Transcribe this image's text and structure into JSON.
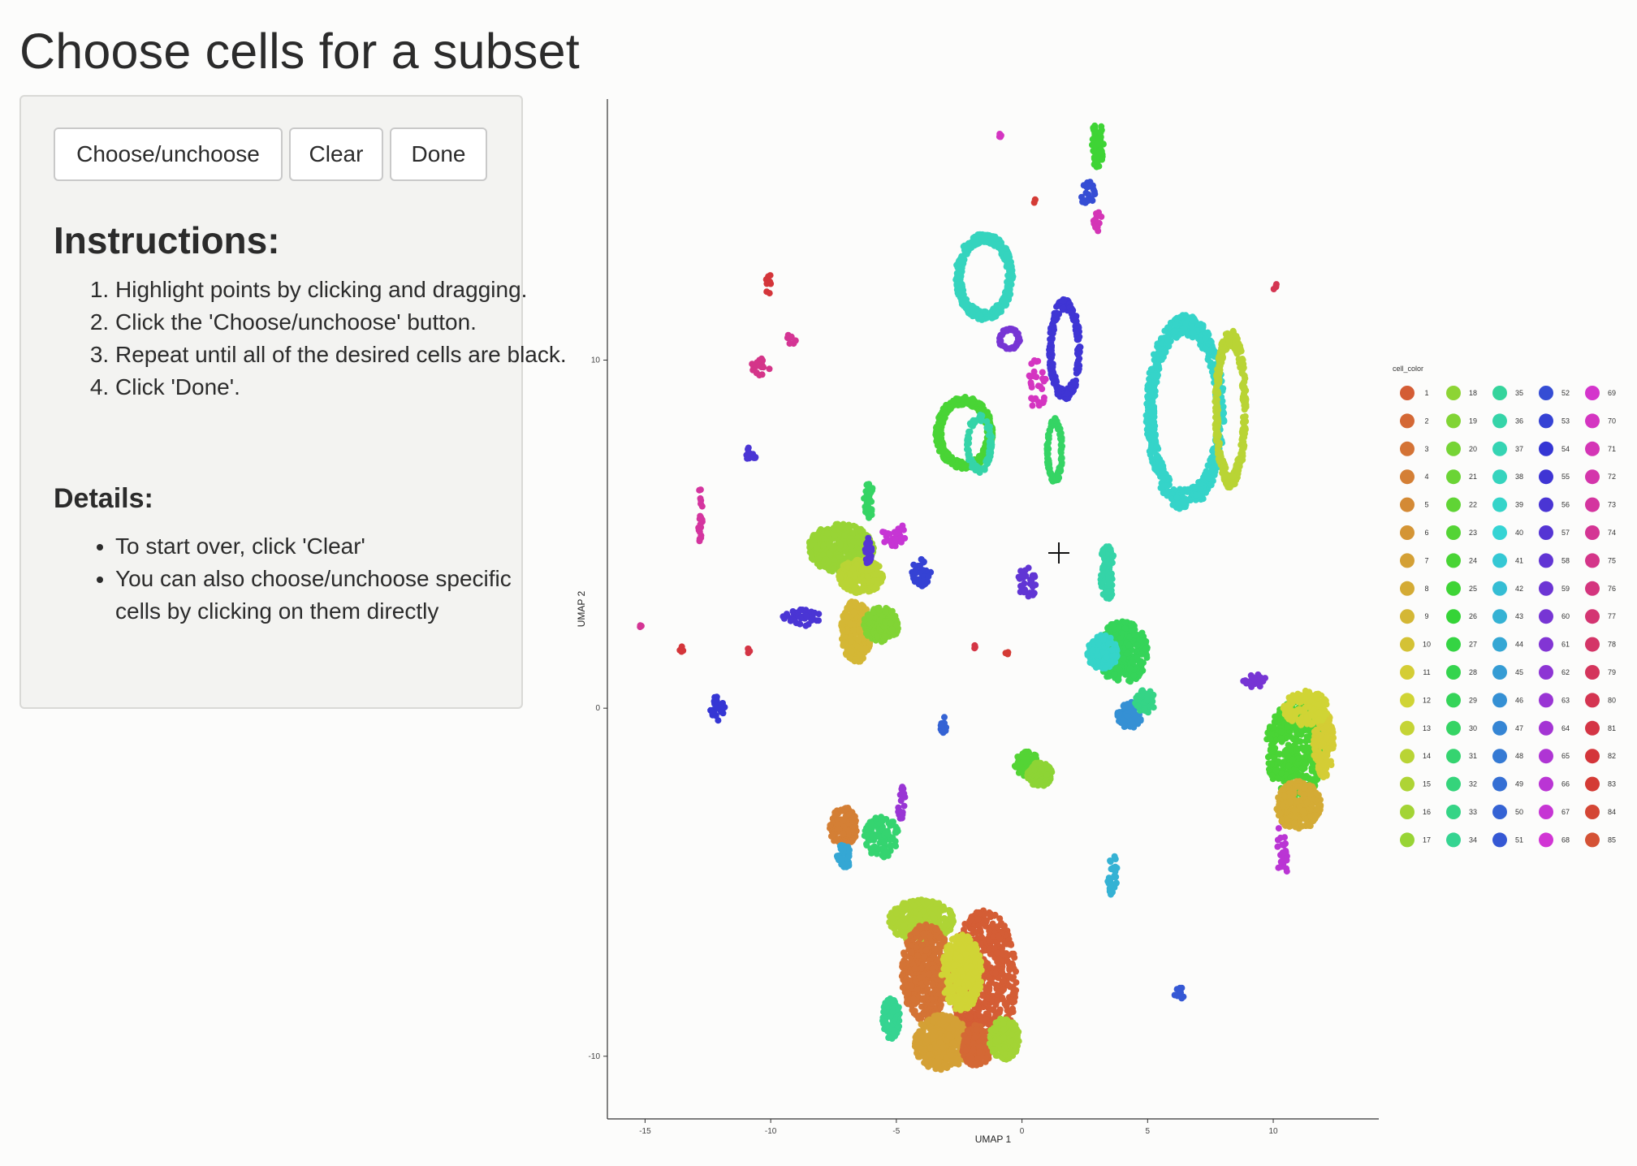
{
  "page": {
    "title": "Choose cells for a subset"
  },
  "buttons": {
    "choose": "Choose/unchoose",
    "clear": "Clear",
    "done": "Done"
  },
  "instructions": {
    "heading": "Instructions:",
    "steps": [
      "Highlight points by clicking and dragging.",
      "Click the 'Choose/unchoose' button.",
      "Repeat until all of the desired cells are black.",
      "Click 'Done'."
    ]
  },
  "details": {
    "heading": "Details:",
    "items": [
      "To start over, click 'Clear'",
      "You can also choose/unchoose specific cells by clicking on them directly"
    ]
  },
  "cursor": {
    "icon": "crosshair-icon"
  },
  "chart_data": {
    "type": "scatter",
    "xlabel": "UMAP 1",
    "ylabel": "UMAP 2",
    "xlim": [
      -16.5,
      14.2
    ],
    "ylim": [
      -11.8,
      17.5
    ],
    "xticks": [
      -15,
      -10,
      -5,
      0,
      5,
      10
    ],
    "xtick_labels": [
      "-15",
      "-10",
      "-5",
      "0",
      "5",
      "10"
    ],
    "yticks": [
      -10,
      0,
      10
    ],
    "ytick_labels": [
      "-10",
      "0",
      "10"
    ],
    "grid": false,
    "legend": {
      "title": "cell_color",
      "placement": "right",
      "columns": [
        [
          "1",
          "2",
          "3",
          "4",
          "5",
          "6",
          "7",
          "8",
          "9",
          "10",
          "11",
          "12",
          "13",
          "14",
          "15",
          "16",
          "17"
        ],
        [
          "18",
          "19",
          "20",
          "21",
          "22",
          "23",
          "24",
          "25",
          "26",
          "27",
          "28",
          "29",
          "30",
          "31",
          "32",
          "33",
          "34"
        ],
        [
          "35",
          "36",
          "37",
          "38",
          "39",
          "40",
          "41",
          "42",
          "43",
          "44",
          "45",
          "46",
          "47",
          "48",
          "49",
          "50",
          "51"
        ],
        [
          "52",
          "53",
          "54",
          "55",
          "56",
          "57",
          "58",
          "59",
          "60",
          "61",
          "62",
          "63",
          "64",
          "65",
          "66",
          "67",
          "68"
        ],
        [
          "69",
          "70",
          "71",
          "72",
          "73",
          "74",
          "75",
          "76",
          "77",
          "78",
          "79",
          "80",
          "81",
          "82",
          "83",
          "84",
          "85"
        ]
      ]
    },
    "clusters": [
      {
        "label": "25",
        "x": 3.0,
        "y": 16.2,
        "rx": 0.25,
        "ry": 0.7,
        "n": 60
      },
      {
        "label": "52",
        "x": 2.6,
        "y": 14.8,
        "rx": 0.3,
        "ry": 0.35,
        "n": 25
      },
      {
        "label": "71",
        "x": 3.0,
        "y": 14.0,
        "rx": 0.2,
        "ry": 0.3,
        "n": 15
      },
      {
        "label": "70",
        "x": -0.9,
        "y": 16.5,
        "rx": 0.1,
        "ry": 0.1,
        "n": 4
      },
      {
        "label": "83",
        "x": 0.5,
        "y": 14.6,
        "rx": 0.08,
        "ry": 0.08,
        "n": 3
      },
      {
        "label": "80",
        "x": 10.1,
        "y": 12.1,
        "rx": 0.1,
        "ry": 0.1,
        "n": 4
      },
      {
        "label": "82",
        "x": -10.1,
        "y": 12.2,
        "rx": 0.15,
        "ry": 0.3,
        "n": 8
      },
      {
        "label": "75",
        "x": -10.4,
        "y": 9.8,
        "rx": 0.4,
        "ry": 0.25,
        "n": 18
      },
      {
        "label": "74",
        "x": -9.2,
        "y": 10.6,
        "rx": 0.2,
        "ry": 0.15,
        "n": 8
      },
      {
        "label": "56",
        "x": -10.8,
        "y": 7.3,
        "rx": 0.25,
        "ry": 0.2,
        "n": 15
      },
      {
        "label": "73",
        "x": -12.8,
        "y": 5.6,
        "rx": 0.1,
        "ry": 0.9,
        "n": 20
      },
      {
        "label": "67",
        "x": -5.1,
        "y": 5.0,
        "rx": 0.5,
        "ry": 0.35,
        "n": 30
      },
      {
        "label": "53",
        "x": -4.0,
        "y": 3.9,
        "rx": 0.4,
        "ry": 0.4,
        "n": 40
      },
      {
        "label": "30",
        "x": -6.1,
        "y": 6.0,
        "rx": 0.2,
        "ry": 0.6,
        "n": 30
      },
      {
        "label": "17",
        "x": -7.2,
        "y": 4.6,
        "rx": 1.3,
        "ry": 0.7,
        "n": 500
      },
      {
        "label": "14",
        "x": -6.4,
        "y": 3.8,
        "rx": 0.9,
        "ry": 0.5,
        "n": 260
      },
      {
        "label": "9",
        "x": -6.6,
        "y": 2.2,
        "rx": 0.6,
        "ry": 0.9,
        "n": 300
      },
      {
        "label": "19",
        "x": -5.6,
        "y": 2.4,
        "rx": 0.7,
        "ry": 0.5,
        "n": 220
      },
      {
        "label": "57",
        "x": -6.1,
        "y": 4.5,
        "rx": 0.15,
        "ry": 0.4,
        "n": 25
      },
      {
        "label": "56",
        "x": -8.8,
        "y": 2.6,
        "rx": 0.8,
        "ry": 0.25,
        "n": 40
      },
      {
        "label": "74",
        "x": -15.2,
        "y": 2.4,
        "rx": 0.08,
        "ry": 0.08,
        "n": 3
      },
      {
        "label": "82",
        "x": -13.6,
        "y": 1.7,
        "rx": 0.15,
        "ry": 0.08,
        "n": 5
      },
      {
        "label": "81",
        "x": -10.9,
        "y": 1.6,
        "rx": 0.08,
        "ry": 0.12,
        "n": 4
      },
      {
        "label": "54",
        "x": -12.1,
        "y": 0.0,
        "rx": 0.3,
        "ry": 0.35,
        "n": 25
      },
      {
        "label": "50",
        "x": -3.1,
        "y": -0.5,
        "rx": 0.15,
        "ry": 0.25,
        "n": 15
      },
      {
        "label": "81",
        "x": -1.9,
        "y": 1.8,
        "rx": 0.08,
        "ry": 0.08,
        "n": 3
      },
      {
        "label": "83",
        "x": -0.6,
        "y": 1.6,
        "rx": 0.08,
        "ry": 0.08,
        "n": 3
      },
      {
        "label": "58",
        "x": 0.2,
        "y": 3.6,
        "rx": 0.35,
        "ry": 0.55,
        "n": 30
      },
      {
        "label": "70",
        "x": 0.6,
        "y": 9.4,
        "rx": 0.35,
        "ry": 0.9,
        "n": 30
      },
      {
        "label": "36",
        "x": 3.4,
        "y": 3.9,
        "rx": 0.3,
        "ry": 0.8,
        "n": 80
      },
      {
        "label": "29",
        "x": 4.0,
        "y": 1.6,
        "rx": 1.0,
        "ry": 0.9,
        "n": 340
      },
      {
        "label": "39",
        "x": 3.2,
        "y": 1.6,
        "rx": 0.6,
        "ry": 0.5,
        "n": 140
      },
      {
        "label": "46",
        "x": 4.3,
        "y": -0.2,
        "rx": 0.5,
        "ry": 0.4,
        "n": 80
      },
      {
        "label": "33",
        "x": 4.9,
        "y": 0.2,
        "rx": 0.4,
        "ry": 0.35,
        "n": 70
      },
      {
        "label": "23",
        "x": 0.2,
        "y": -1.6,
        "rx": 0.5,
        "ry": 0.35,
        "n": 120
      },
      {
        "label": "18",
        "x": 0.7,
        "y": -1.9,
        "rx": 0.5,
        "ry": 0.35,
        "n": 120
      },
      {
        "label": "43",
        "x": 3.6,
        "y": -4.8,
        "rx": 0.2,
        "ry": 0.6,
        "n": 30
      },
      {
        "label": "51",
        "x": 6.3,
        "y": -8.2,
        "rx": 0.25,
        "ry": 0.2,
        "n": 15
      },
      {
        "label": "60",
        "x": 9.3,
        "y": 0.8,
        "rx": 0.5,
        "ry": 0.2,
        "n": 20
      },
      {
        "label": "66",
        "x": 10.4,
        "y": -4.0,
        "rx": 0.3,
        "ry": 0.8,
        "n": 25
      },
      {
        "label": "24",
        "x": 10.9,
        "y": -1.2,
        "rx": 1.2,
        "ry": 1.4,
        "n": 500
      },
      {
        "label": "8",
        "x": 11.0,
        "y": -2.8,
        "rx": 0.9,
        "ry": 0.7,
        "n": 280
      },
      {
        "label": "11",
        "x": 12.0,
        "y": -1.0,
        "rx": 0.4,
        "ry": 1.0,
        "n": 180
      },
      {
        "label": "12",
        "x": 11.3,
        "y": 0.0,
        "rx": 0.9,
        "ry": 0.5,
        "n": 150
      },
      {
        "label": "4",
        "x": -7.1,
        "y": -3.4,
        "rx": 0.55,
        "ry": 0.6,
        "n": 140
      },
      {
        "label": "31",
        "x": -5.6,
        "y": -3.7,
        "rx": 0.7,
        "ry": 0.6,
        "n": 120
      },
      {
        "label": "44",
        "x": -7.1,
        "y": -4.3,
        "rx": 0.3,
        "ry": 0.4,
        "n": 40
      },
      {
        "label": "63",
        "x": -4.8,
        "y": -2.7,
        "rx": 0.15,
        "ry": 0.5,
        "n": 20
      },
      {
        "label": "15",
        "x": -4.0,
        "y": -6.1,
        "rx": 1.3,
        "ry": 0.6,
        "n": 300
      },
      {
        "label": "1",
        "x": -1.5,
        "y": -7.8,
        "rx": 1.3,
        "ry": 2.0,
        "n": 600
      },
      {
        "label": "3",
        "x": -3.8,
        "y": -7.6,
        "rx": 1.0,
        "ry": 1.4,
        "n": 500
      },
      {
        "label": "12",
        "x": -2.4,
        "y": -7.6,
        "rx": 0.8,
        "ry": 1.1,
        "n": 350
      },
      {
        "label": "7",
        "x": -3.2,
        "y": -9.6,
        "rx": 1.1,
        "ry": 0.8,
        "n": 400
      },
      {
        "label": "2",
        "x": -1.8,
        "y": -9.7,
        "rx": 0.6,
        "ry": 0.6,
        "n": 180
      },
      {
        "label": "16",
        "x": -0.7,
        "y": -9.5,
        "rx": 0.6,
        "ry": 0.6,
        "n": 200
      },
      {
        "label": "34",
        "x": -5.2,
        "y": -8.9,
        "rx": 0.35,
        "ry": 0.6,
        "n": 100
      }
    ],
    "ring_clusters": [
      {
        "label": "38",
        "x": -1.5,
        "y": 12.4,
        "rx": 1.1,
        "ry": 1.2,
        "n": 400
      },
      {
        "label": "60",
        "x": -0.5,
        "y": 10.6,
        "rx": 0.4,
        "ry": 0.3,
        "n": 60
      },
      {
        "label": "24",
        "x": -2.3,
        "y": 7.9,
        "rx": 1.1,
        "ry": 1.0,
        "n": 360
      },
      {
        "label": "36",
        "x": -1.7,
        "y": 7.6,
        "rx": 0.5,
        "ry": 0.8,
        "n": 100
      },
      {
        "label": "55",
        "x": 1.7,
        "y": 10.3,
        "rx": 0.6,
        "ry": 1.4,
        "n": 250
      },
      {
        "label": "30",
        "x": 1.3,
        "y": 7.4,
        "rx": 0.3,
        "ry": 0.9,
        "n": 120
      },
      {
        "label": "39",
        "x": 6.5,
        "y": 8.5,
        "rx": 1.5,
        "ry": 2.7,
        "n": 700
      },
      {
        "label": "14",
        "x": 8.3,
        "y": 8.6,
        "rx": 0.6,
        "ry": 2.2,
        "n": 380
      }
    ]
  }
}
